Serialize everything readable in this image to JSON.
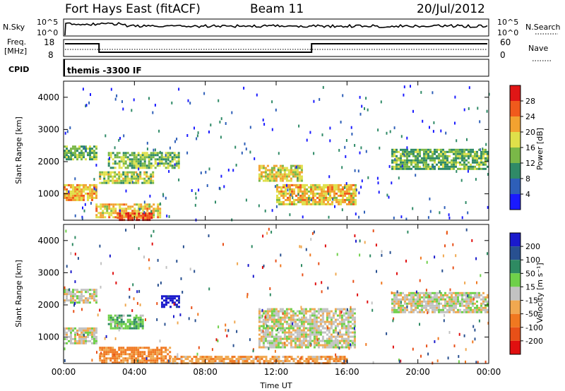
{
  "header": {
    "station": "Fort Hays East (fitACF)",
    "beam": "Beam 11",
    "date": "20/Jul/2012"
  },
  "panels": {
    "nsky": {
      "left_label": "N.Sky",
      "right_label": "N.Search",
      "left_ticks": [
        "10^5",
        "10^0"
      ],
      "right_ticks": [
        "10^5",
        "10^0"
      ]
    },
    "freq": {
      "left_label_1": "Freq.",
      "left_label_2": "[MHz]",
      "right_label": "Nave",
      "left_ticks": [
        "18",
        "8"
      ],
      "right_ticks": [
        "60",
        "0"
      ]
    },
    "cpid": {
      "label": "CPID",
      "text": "themis -3300 IF"
    }
  },
  "colors": {
    "power": [
      "#1a1aff",
      "#2e5fb8",
      "#2f8a67",
      "#7ab848",
      "#dfe04a",
      "#f2a230",
      "#f05a1c",
      "#e01616"
    ],
    "velocity": [
      "#1a1acc",
      "#285090",
      "#2e8a62",
      "#6fd04a",
      "#c2c2c2",
      "#f0a850",
      "#f07820",
      "#e85018",
      "#e01010"
    ]
  },
  "chart_data": [
    {
      "type": "heatmap",
      "ylabel": "Slant Range [km]",
      "xlabel": "",
      "x_ticks": [
        "00:00",
        "04:00",
        "08:00",
        "12:00",
        "16:00",
        "20:00",
        "00:00"
      ],
      "y_ticks": [
        "1000",
        "2000",
        "3000",
        "4000"
      ],
      "ylim": [
        180,
        4500
      ],
      "xlim_hours": [
        0,
        24
      ],
      "colorbar": {
        "label": "Power [dB]",
        "ticks": [
          "4",
          "8",
          "12",
          "16",
          "20",
          "24",
          "28"
        ],
        "range": [
          0,
          32
        ]
      },
      "regions": [
        {
          "t0": 0.0,
          "t1": 1.8,
          "r0": 800,
          "r1": 1300,
          "level": 21
        },
        {
          "t0": 0.0,
          "t1": 1.8,
          "r0": 2050,
          "r1": 2500,
          "level": 13
        },
        {
          "t0": 1.8,
          "t1": 5.5,
          "r0": 300,
          "r1": 700,
          "level": 20
        },
        {
          "t0": 3.0,
          "t1": 5.0,
          "r0": 200,
          "r1": 420,
          "level": 28
        },
        {
          "t0": 2.0,
          "t1": 5.0,
          "r0": 1350,
          "r1": 1700,
          "level": 16
        },
        {
          "t0": 2.5,
          "t1": 6.5,
          "r0": 1800,
          "r1": 2300,
          "level": 14
        },
        {
          "t0": 11.0,
          "t1": 13.5,
          "r0": 1400,
          "r1": 1900,
          "level": 18
        },
        {
          "t0": 12.0,
          "t1": 16.5,
          "r0": 700,
          "r1": 1300,
          "level": 20
        },
        {
          "t0": 18.5,
          "t1": 24.0,
          "r0": 1800,
          "r1": 2400,
          "level": 13
        }
      ]
    },
    {
      "type": "heatmap",
      "ylabel": "Slant Range [km]",
      "xlabel": "Time UT",
      "x_ticks": [
        "00:00",
        "04:00",
        "08:00",
        "12:00",
        "16:00",
        "20:00",
        "00:00"
      ],
      "y_ticks": [
        "1000",
        "2000",
        "3000",
        "4000"
      ],
      "ylim": [
        180,
        4500
      ],
      "xlim_hours": [
        0,
        24
      ],
      "colorbar": {
        "label": "Velocity [m s⁻¹]",
        "ticks": [
          "200",
          "100",
          "50",
          "15",
          "-15",
          "-50",
          "-100",
          "-200"
        ],
        "range": [
          -250,
          250
        ]
      },
      "regions": [
        {
          "t0": 0.0,
          "t1": 1.8,
          "r0": 800,
          "r1": 1300,
          "level": 0
        },
        {
          "t0": 0.0,
          "t1": 1.8,
          "r0": 2050,
          "r1": 2500,
          "level": 0
        },
        {
          "t0": 2.0,
          "t1": 6.0,
          "r0": 200,
          "r1": 700,
          "level": -60
        },
        {
          "t0": 2.5,
          "t1": 4.5,
          "r0": 1300,
          "r1": 1700,
          "level": 40
        },
        {
          "t0": 5.5,
          "t1": 6.5,
          "r0": 1950,
          "r1": 2300,
          "level": 220
        },
        {
          "t0": 11.0,
          "t1": 16.5,
          "r0": 700,
          "r1": 1900,
          "level": 0
        },
        {
          "t0": 18.5,
          "t1": 24.0,
          "r0": 1800,
          "r1": 2400,
          "level": 0
        },
        {
          "t0": 6.0,
          "t1": 16.0,
          "r0": 200,
          "r1": 420,
          "level": -40
        }
      ]
    }
  ]
}
